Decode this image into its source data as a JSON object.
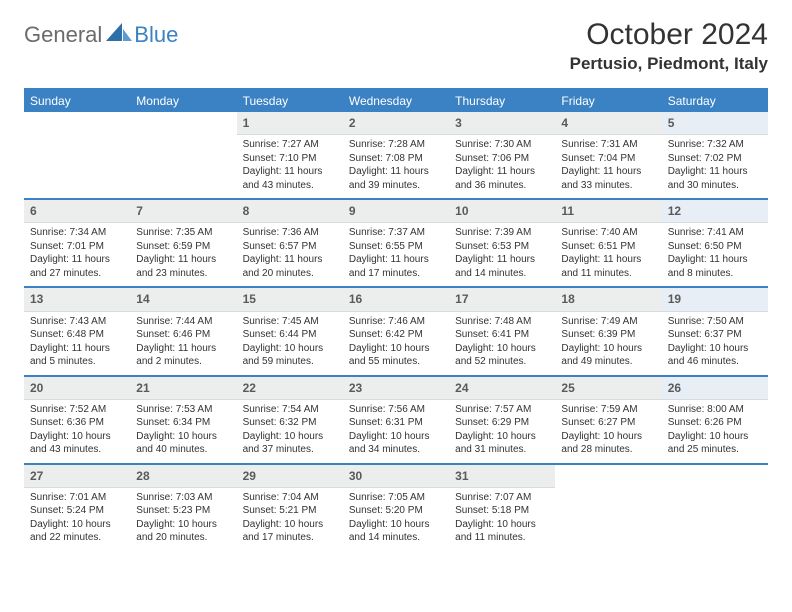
{
  "logo": {
    "general": "General",
    "blue": "Blue"
  },
  "title": "October 2024",
  "location": "Pertusio, Piedmont, Italy",
  "colors": {
    "brand": "#3b82c4",
    "header_bg": "#3b82c4",
    "header_text": "#ffffff",
    "daynum_bg": "#eceded",
    "daynum_bg_sat": "#e7eef5",
    "text": "#333333"
  },
  "day_names": [
    "Sunday",
    "Monday",
    "Tuesday",
    "Wednesday",
    "Thursday",
    "Friday",
    "Saturday"
  ],
  "weeks": [
    [
      null,
      null,
      {
        "n": "1",
        "sr": "Sunrise: 7:27 AM",
        "ss": "Sunset: 7:10 PM",
        "dl1": "Daylight: 11 hours",
        "dl2": "and 43 minutes."
      },
      {
        "n": "2",
        "sr": "Sunrise: 7:28 AM",
        "ss": "Sunset: 7:08 PM",
        "dl1": "Daylight: 11 hours",
        "dl2": "and 39 minutes."
      },
      {
        "n": "3",
        "sr": "Sunrise: 7:30 AM",
        "ss": "Sunset: 7:06 PM",
        "dl1": "Daylight: 11 hours",
        "dl2": "and 36 minutes."
      },
      {
        "n": "4",
        "sr": "Sunrise: 7:31 AM",
        "ss": "Sunset: 7:04 PM",
        "dl1": "Daylight: 11 hours",
        "dl2": "and 33 minutes."
      },
      {
        "n": "5",
        "sr": "Sunrise: 7:32 AM",
        "ss": "Sunset: 7:02 PM",
        "dl1": "Daylight: 11 hours",
        "dl2": "and 30 minutes."
      }
    ],
    [
      {
        "n": "6",
        "sr": "Sunrise: 7:34 AM",
        "ss": "Sunset: 7:01 PM",
        "dl1": "Daylight: 11 hours",
        "dl2": "and 27 minutes."
      },
      {
        "n": "7",
        "sr": "Sunrise: 7:35 AM",
        "ss": "Sunset: 6:59 PM",
        "dl1": "Daylight: 11 hours",
        "dl2": "and 23 minutes."
      },
      {
        "n": "8",
        "sr": "Sunrise: 7:36 AM",
        "ss": "Sunset: 6:57 PM",
        "dl1": "Daylight: 11 hours",
        "dl2": "and 20 minutes."
      },
      {
        "n": "9",
        "sr": "Sunrise: 7:37 AM",
        "ss": "Sunset: 6:55 PM",
        "dl1": "Daylight: 11 hours",
        "dl2": "and 17 minutes."
      },
      {
        "n": "10",
        "sr": "Sunrise: 7:39 AM",
        "ss": "Sunset: 6:53 PM",
        "dl1": "Daylight: 11 hours",
        "dl2": "and 14 minutes."
      },
      {
        "n": "11",
        "sr": "Sunrise: 7:40 AM",
        "ss": "Sunset: 6:51 PM",
        "dl1": "Daylight: 11 hours",
        "dl2": "and 11 minutes."
      },
      {
        "n": "12",
        "sr": "Sunrise: 7:41 AM",
        "ss": "Sunset: 6:50 PM",
        "dl1": "Daylight: 11 hours",
        "dl2": "and 8 minutes."
      }
    ],
    [
      {
        "n": "13",
        "sr": "Sunrise: 7:43 AM",
        "ss": "Sunset: 6:48 PM",
        "dl1": "Daylight: 11 hours",
        "dl2": "and 5 minutes."
      },
      {
        "n": "14",
        "sr": "Sunrise: 7:44 AM",
        "ss": "Sunset: 6:46 PM",
        "dl1": "Daylight: 11 hours",
        "dl2": "and 2 minutes."
      },
      {
        "n": "15",
        "sr": "Sunrise: 7:45 AM",
        "ss": "Sunset: 6:44 PM",
        "dl1": "Daylight: 10 hours",
        "dl2": "and 59 minutes."
      },
      {
        "n": "16",
        "sr": "Sunrise: 7:46 AM",
        "ss": "Sunset: 6:42 PM",
        "dl1": "Daylight: 10 hours",
        "dl2": "and 55 minutes."
      },
      {
        "n": "17",
        "sr": "Sunrise: 7:48 AM",
        "ss": "Sunset: 6:41 PM",
        "dl1": "Daylight: 10 hours",
        "dl2": "and 52 minutes."
      },
      {
        "n": "18",
        "sr": "Sunrise: 7:49 AM",
        "ss": "Sunset: 6:39 PM",
        "dl1": "Daylight: 10 hours",
        "dl2": "and 49 minutes."
      },
      {
        "n": "19",
        "sr": "Sunrise: 7:50 AM",
        "ss": "Sunset: 6:37 PM",
        "dl1": "Daylight: 10 hours",
        "dl2": "and 46 minutes."
      }
    ],
    [
      {
        "n": "20",
        "sr": "Sunrise: 7:52 AM",
        "ss": "Sunset: 6:36 PM",
        "dl1": "Daylight: 10 hours",
        "dl2": "and 43 minutes."
      },
      {
        "n": "21",
        "sr": "Sunrise: 7:53 AM",
        "ss": "Sunset: 6:34 PM",
        "dl1": "Daylight: 10 hours",
        "dl2": "and 40 minutes."
      },
      {
        "n": "22",
        "sr": "Sunrise: 7:54 AM",
        "ss": "Sunset: 6:32 PM",
        "dl1": "Daylight: 10 hours",
        "dl2": "and 37 minutes."
      },
      {
        "n": "23",
        "sr": "Sunrise: 7:56 AM",
        "ss": "Sunset: 6:31 PM",
        "dl1": "Daylight: 10 hours",
        "dl2": "and 34 minutes."
      },
      {
        "n": "24",
        "sr": "Sunrise: 7:57 AM",
        "ss": "Sunset: 6:29 PM",
        "dl1": "Daylight: 10 hours",
        "dl2": "and 31 minutes."
      },
      {
        "n": "25",
        "sr": "Sunrise: 7:59 AM",
        "ss": "Sunset: 6:27 PM",
        "dl1": "Daylight: 10 hours",
        "dl2": "and 28 minutes."
      },
      {
        "n": "26",
        "sr": "Sunrise: 8:00 AM",
        "ss": "Sunset: 6:26 PM",
        "dl1": "Daylight: 10 hours",
        "dl2": "and 25 minutes."
      }
    ],
    [
      {
        "n": "27",
        "sr": "Sunrise: 7:01 AM",
        "ss": "Sunset: 5:24 PM",
        "dl1": "Daylight: 10 hours",
        "dl2": "and 22 minutes."
      },
      {
        "n": "28",
        "sr": "Sunrise: 7:03 AM",
        "ss": "Sunset: 5:23 PM",
        "dl1": "Daylight: 10 hours",
        "dl2": "and 20 minutes."
      },
      {
        "n": "29",
        "sr": "Sunrise: 7:04 AM",
        "ss": "Sunset: 5:21 PM",
        "dl1": "Daylight: 10 hours",
        "dl2": "and 17 minutes."
      },
      {
        "n": "30",
        "sr": "Sunrise: 7:05 AM",
        "ss": "Sunset: 5:20 PM",
        "dl1": "Daylight: 10 hours",
        "dl2": "and 14 minutes."
      },
      {
        "n": "31",
        "sr": "Sunrise: 7:07 AM",
        "ss": "Sunset: 5:18 PM",
        "dl1": "Daylight: 10 hours",
        "dl2": "and 11 minutes."
      },
      null,
      null
    ]
  ]
}
